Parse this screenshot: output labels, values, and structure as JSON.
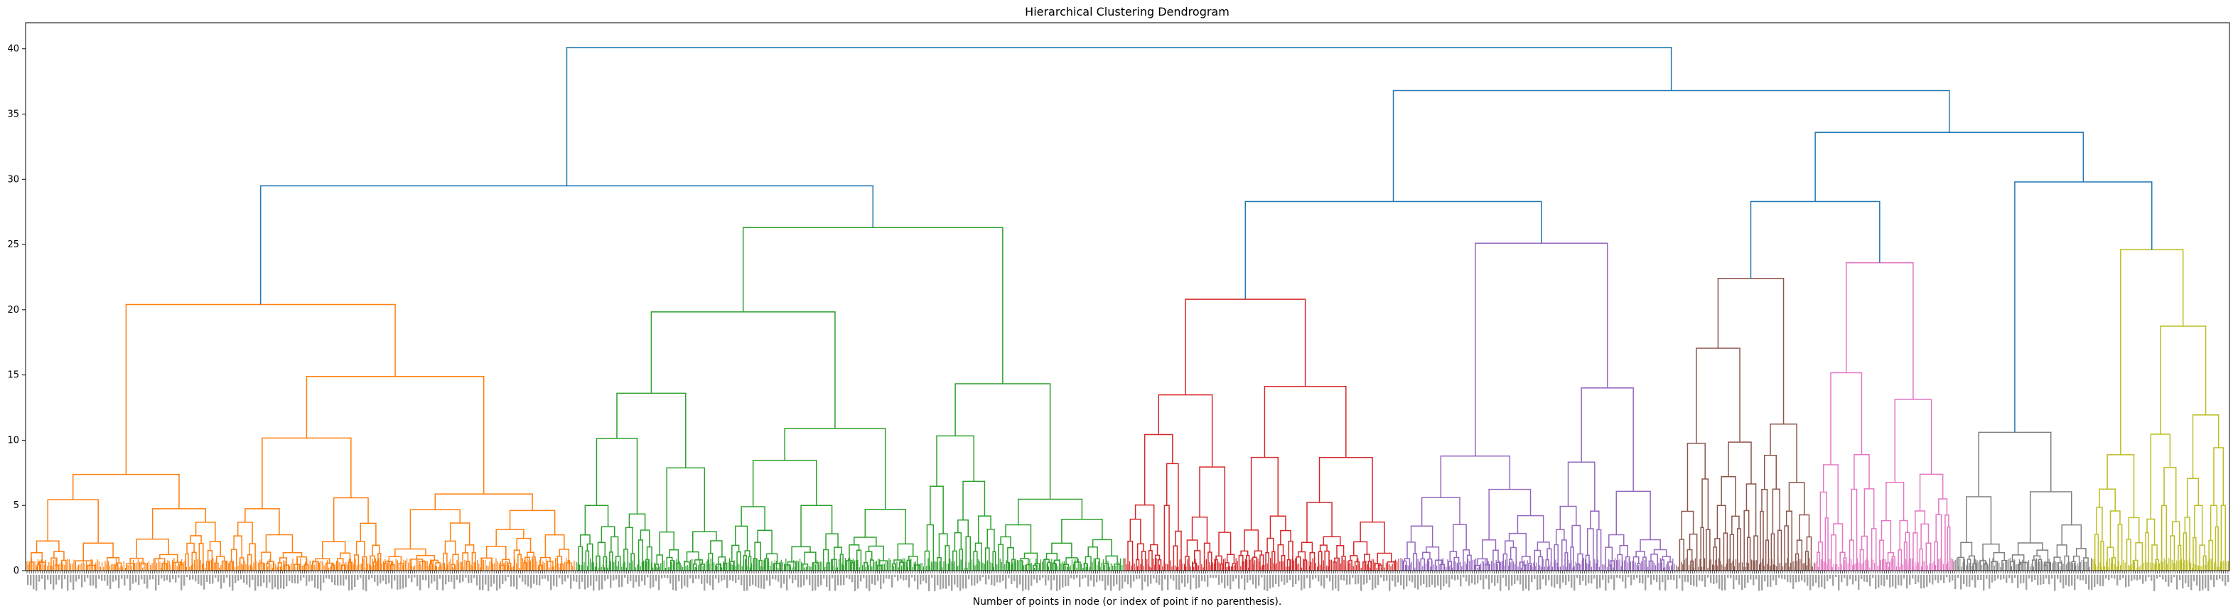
{
  "chart_data": {
    "type": "dendrogram",
    "title": "Hierarchical Clustering Dendrogram",
    "xlabel": "Number of points in node (or index of point if no parenthesis).",
    "ylabel": "",
    "ylim": [
      0,
      42
    ],
    "yticks": [
      0,
      5,
      10,
      15,
      20,
      25,
      30,
      35,
      40
    ],
    "ytick_labels": [
      "0",
      "5",
      "10",
      "15",
      "20",
      "25",
      "30",
      "35",
      "40"
    ],
    "grid": false,
    "clusters": [
      {
        "color": "#ff7f0e",
        "root_height": 20.4,
        "leaf_count": 400
      },
      {
        "color": "#2ca02c",
        "root_height": 26.3,
        "leaf_count": 400
      },
      {
        "color": "#d62728",
        "root_height": 20.8,
        "leaf_count": 200
      },
      {
        "color": "#9467bd",
        "root_height": 25.1,
        "leaf_count": 200
      },
      {
        "color": "#8c564b",
        "root_height": 22.4,
        "leaf_count": 100
      },
      {
        "color": "#e377c2",
        "root_height": 23.6,
        "leaf_count": 100
      },
      {
        "color": "#7f7f7f",
        "root_height": 10.6,
        "leaf_count": 100
      },
      {
        "color": "#bcbd22",
        "root_height": 24.6,
        "leaf_count": 100
      }
    ],
    "links": [
      {
        "left": "orange",
        "right": "green",
        "height": 29.5
      },
      {
        "left": "red",
        "right": "purple",
        "height": 28.3
      },
      {
        "left": "brown",
        "right": "pink",
        "height": 28.3
      },
      {
        "left": "gray",
        "right": "olive",
        "height": 29.8
      },
      {
        "left": "brown-pink",
        "right": "gray-olive",
        "height": 33.6
      },
      {
        "left": "red-purple",
        "right": "brown-pink-gray-olive",
        "height": 36.8
      },
      {
        "left": "orange-green",
        "right": "red-purple-brown-pink-gray-olive",
        "height": 40.1
      }
    ],
    "link_color": "#1f77b4",
    "leaf_labels_note_visible": false
  }
}
